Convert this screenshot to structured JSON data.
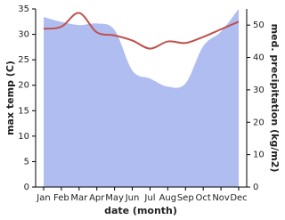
{
  "chart_data": {
    "type": "line",
    "xlabel": "date (month)",
    "ylabel": "max temp (C)",
    "y2label": "med. precipitation (kg/m2)",
    "categories": [
      "Jan",
      "Feb",
      "Mar",
      "Apr",
      "May",
      "Jun",
      "Jul",
      "Aug",
      "Sep",
      "Oct",
      "Nov",
      "Dec"
    ],
    "series": [
      {
        "type": "area",
        "axis": "y2",
        "color": "#b0bdf0",
        "values": [
          52.5,
          51,
          50,
          50.5,
          48.5,
          36,
          33.5,
          31,
          32,
          43.5,
          48,
          55
        ]
      },
      {
        "type": "line",
        "axis": "y",
        "color": "#c0504d",
        "values": [
          31.1,
          31.5,
          34.2,
          30.4,
          29.8,
          28.8,
          27.2,
          28.6,
          28.3,
          29.5,
          31.0,
          32.5
        ]
      }
    ],
    "ylim": [
      0,
      35
    ],
    "yticks": [
      0,
      5,
      10,
      15,
      20,
      25,
      30,
      35
    ],
    "y2lim": [
      0,
      55
    ],
    "y2ticks": [
      0,
      10,
      20,
      30,
      40,
      50
    ]
  }
}
